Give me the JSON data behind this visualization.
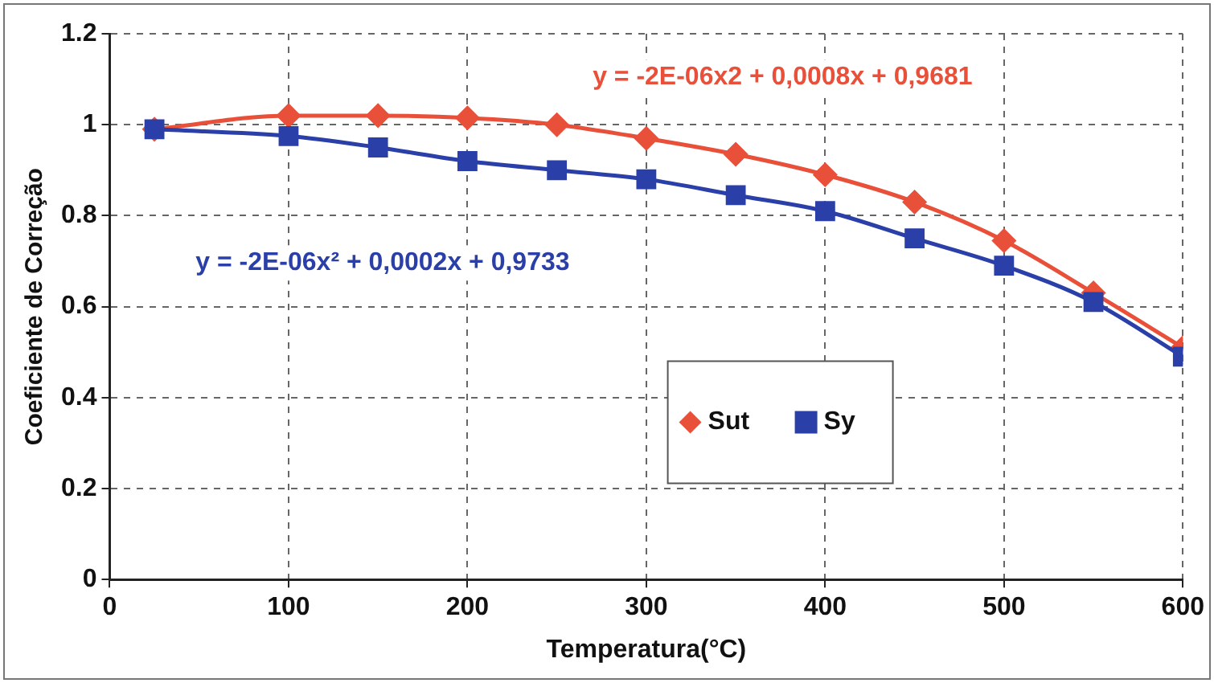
{
  "chart_data": {
    "type": "line",
    "xlabel": "Temperatura(°C)",
    "ylabel": "Coeficiente de Correção",
    "x": [
      25,
      100,
      150,
      200,
      250,
      300,
      350,
      400,
      450,
      500,
      550,
      600
    ],
    "series": [
      {
        "name": "Sut",
        "color": "#e8503a",
        "marker": "diamond",
        "values": [
          0.99,
          1.02,
          1.02,
          1.015,
          1.0,
          0.97,
          0.935,
          0.89,
          0.83,
          0.745,
          0.63,
          0.51
        ]
      },
      {
        "name": "Sy",
        "color": "#2a3fa8",
        "marker": "square",
        "values": [
          0.99,
          0.975,
          0.95,
          0.92,
          0.9,
          0.88,
          0.845,
          0.81,
          0.75,
          0.69,
          0.61,
          0.49
        ]
      }
    ],
    "annotations": [
      "y = -2E-06x2 + 0,0008x + 0,9681",
      "y = -2E-06x² + 0,0002x + 0,9733"
    ],
    "xlim": [
      0,
      600
    ],
    "xticks": [
      0,
      100,
      200,
      300,
      400,
      500,
      600
    ],
    "ylim": [
      0,
      1.2
    ],
    "yticks": [
      0,
      0.2,
      0.4,
      0.6,
      0.8,
      1,
      1.2
    ],
    "grid": true,
    "legend": "bottom right",
    "line_style": "solid"
  }
}
